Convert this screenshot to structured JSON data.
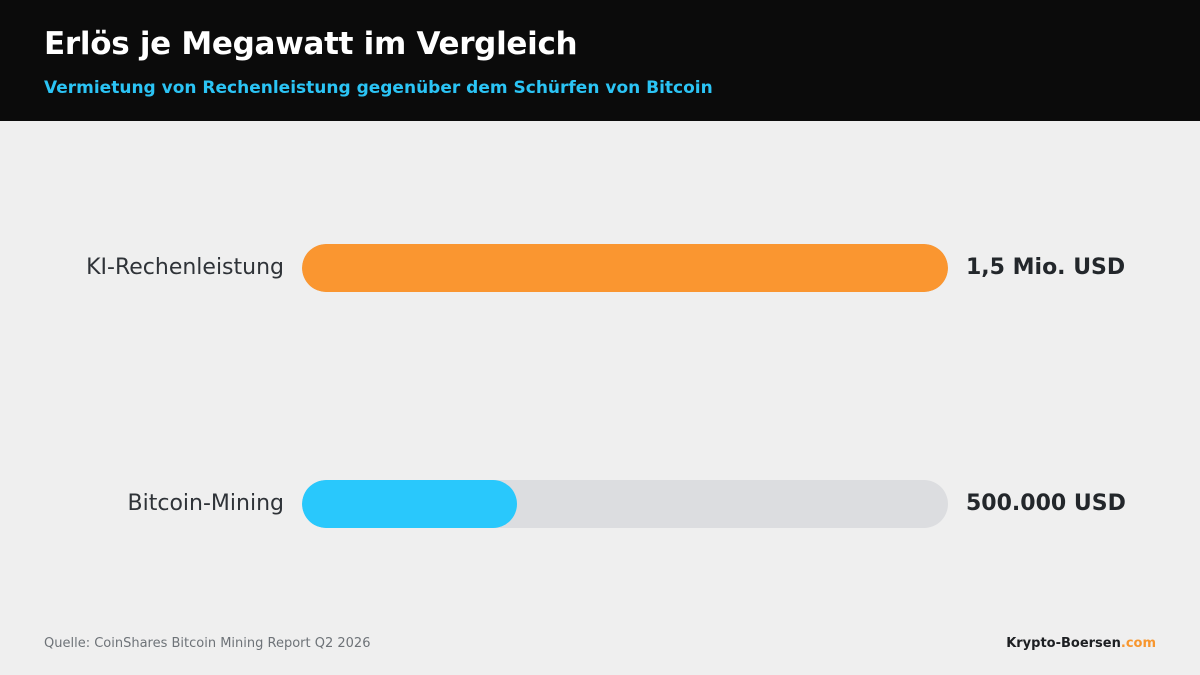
{
  "header": {
    "title": "Erlös je Megawatt im Vergleich",
    "subtitle": "Vermietung von Rechenleistung gegenüber dem Schürfen von Bitcoin"
  },
  "chart_data": {
    "type": "bar",
    "orientation": "horizontal",
    "categories": [
      "KI-Rechenleistung",
      "Bitcoin-Mining"
    ],
    "values": [
      1500000,
      500000
    ],
    "value_labels": [
      "1,5 Mio. USD",
      "500.000 USD"
    ],
    "unit": "USD",
    "xlim": [
      0,
      1500000
    ],
    "colors": [
      "#fa9630",
      "#29c8fc"
    ],
    "track_color": "#dcdde0",
    "grid": false,
    "title": "Erlös je Megawatt im Vergleich",
    "subtitle": "Vermietung von Rechenleistung gegenüber dem Schürfen von Bitcoin"
  },
  "footer": {
    "source": "Quelle: CoinShares Bitcoin Mining Report Q2 2026",
    "brand_name": "Krypto-Boersen",
    "brand_tld": ".com",
    "brand_tld_color": "#f7962e"
  }
}
